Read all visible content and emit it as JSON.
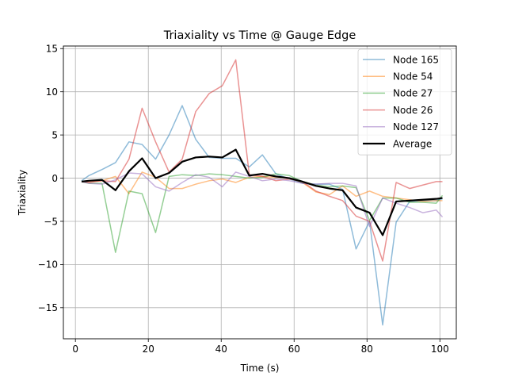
{
  "chart_data": {
    "type": "line",
    "title": "Triaxiality vs Time @ Gauge Edge",
    "xlabel": "Time (s)",
    "ylabel": "Triaxiality",
    "xlim": [
      -3.3,
      104.5
    ],
    "ylim": [
      -18.6,
      15.3
    ],
    "xticks": [
      0,
      20,
      40,
      60,
      80,
      100
    ],
    "yticks": [
      -15,
      -10,
      -5,
      0,
      5,
      10,
      15
    ],
    "grid": true,
    "legend_position": "upper right",
    "x": [
      1.7,
      3.7,
      7.3,
      11,
      14.7,
      18.3,
      22,
      25.7,
      29.3,
      33,
      36.7,
      40.3,
      44,
      47.7,
      51.3,
      55,
      58.7,
      62.3,
      66,
      69.7,
      73.3,
      77,
      80.7,
      84.3,
      88,
      91.7,
      95.3,
      99,
      100.7
    ],
    "series": [
      {
        "name": "Node 165",
        "color": "#1f77b4",
        "alpha": 0.5,
        "linewidth": 1.5,
        "values": [
          -0.3,
          0.3,
          1.0,
          1.8,
          4.2,
          3.9,
          2.2,
          5.0,
          8.4,
          4.5,
          2.4,
          2.3,
          2.3,
          1.3,
          2.7,
          0.5,
          -0.1,
          -0.6,
          -0.7,
          -0.7,
          -1.3,
          -8.2,
          -5.0,
          -17.0,
          -5.1,
          -2.7,
          -2.6,
          -2.6,
          -2.4
        ]
      },
      {
        "name": "Node 54",
        "color": "#ff7f0e",
        "alpha": 0.5,
        "linewidth": 1.5,
        "values": [
          -0.4,
          -0.4,
          -0.3,
          0.2,
          -1.8,
          0.7,
          0.1,
          -1.2,
          -1.2,
          -0.7,
          -0.3,
          -0.1,
          -0.5,
          0.1,
          0.2,
          0.1,
          0.0,
          -0.5,
          -1.6,
          -1.9,
          -0.9,
          -2.1,
          -1.5,
          -2.1,
          -2.3,
          -2.5,
          -2.7,
          -2.6,
          -2.6
        ]
      },
      {
        "name": "Node 27",
        "color": "#2ca02c",
        "alpha": 0.5,
        "linewidth": 1.5,
        "values": [
          -0.4,
          -0.6,
          -0.6,
          -8.6,
          -1.5,
          -1.8,
          -6.3,
          0.2,
          0.4,
          0.3,
          0.5,
          0.4,
          0.2,
          0.0,
          0.1,
          0.5,
          0.3,
          -0.4,
          -0.8,
          -1.0,
          -0.9,
          -1.1,
          -4.9,
          -2.3,
          -2.3,
          -2.8,
          -2.8,
          -2.9,
          -2.0
        ]
      },
      {
        "name": "Node 26",
        "color": "#d62728",
        "alpha": 0.5,
        "linewidth": 1.5,
        "values": [
          -0.4,
          -0.5,
          -0.3,
          -0.4,
          2.2,
          8.1,
          4.2,
          0.7,
          2.2,
          7.7,
          9.8,
          10.7,
          13.7,
          0.4,
          0.2,
          -0.3,
          -0.1,
          -0.4,
          -1.5,
          -2.1,
          -2.6,
          -4.4,
          -5.0,
          -9.6,
          -0.5,
          -1.2,
          -0.8,
          -0.4,
          -0.4
        ]
      },
      {
        "name": "Node 127",
        "color": "#9467bd",
        "alpha": 0.5,
        "linewidth": 1.5,
        "values": [
          -0.4,
          -0.6,
          -0.7,
          -0.2,
          0.6,
          0.5,
          -1.0,
          -1.5,
          -0.5,
          0.4,
          0.1,
          -1.0,
          0.7,
          0.2,
          -0.3,
          -0.1,
          -0.3,
          -0.6,
          -0.7,
          -0.6,
          -0.6,
          -0.9,
          -5.6,
          -2.3,
          -2.9,
          -3.4,
          -4.0,
          -3.7,
          -4.5
        ]
      },
      {
        "name": "Average",
        "color": "#000000",
        "alpha": 1.0,
        "linewidth": 2.2,
        "values": [
          -0.4,
          -0.3,
          -0.2,
          -1.4,
          0.8,
          2.3,
          0.0,
          0.6,
          1.9,
          2.4,
          2.5,
          2.4,
          3.3,
          0.3,
          0.5,
          0.2,
          0.0,
          -0.4,
          -0.9,
          -1.2,
          -1.4,
          -3.4,
          -4.0,
          -6.6,
          -2.7,
          -2.6,
          -2.5,
          -2.4,
          -2.3
        ]
      }
    ]
  }
}
